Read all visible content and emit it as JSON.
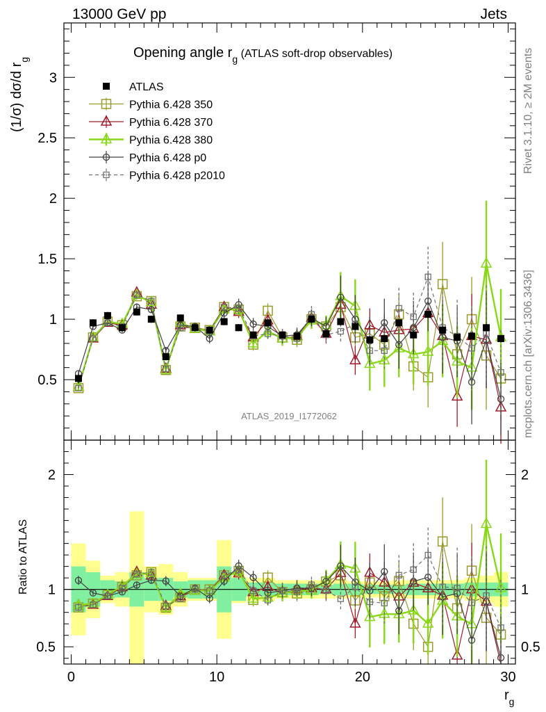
{
  "header": {
    "left": "13000 GeV pp",
    "right": "Jets"
  },
  "side": {
    "rivet": "Rivet 3.1.10, ≥ 2M events",
    "mcplots": "mcplots.cern.ch [arXiv:1306.3436]"
  },
  "analysis_tag": "ATLAS_2019_I1772062",
  "chart_data": [
    {
      "type": "scatter",
      "title": "Opening angle r_g (ATLAS soft-drop observables)",
      "xlabel": "r_g",
      "ylabel": "(1/σ) dσ/d r_g",
      "xlim": [
        -0.5,
        30.5
      ],
      "ylim": [
        0,
        3.45
      ],
      "yticks": [
        0.5,
        1,
        1.5,
        2,
        2.5,
        3
      ],
      "ytick_labels": [
        "0.5",
        "1",
        "1.5",
        "2",
        "2.5",
        "3"
      ],
      "x": [
        0.5,
        1.5,
        2.5,
        3.5,
        4.5,
        5.5,
        6.5,
        7.5,
        8.5,
        9.5,
        10.5,
        11.5,
        12.5,
        13.5,
        14.5,
        15.5,
        16.5,
        17.5,
        18.5,
        19.5,
        20.5,
        21.5,
        22.5,
        23.5,
        24.5,
        25.5,
        26.5,
        27.5,
        28.5,
        29.5
      ],
      "legend_position": "top-left",
      "series": [
        {
          "name": "ATLAS",
          "color": "#000000",
          "marker": "filled-square",
          "values": [
            0.51,
            0.97,
            1.03,
            0.93,
            1.06,
            1.0,
            0.69,
            1.01,
            0.93,
            0.91,
            0.98,
            0.93,
            0.87,
            0.97,
            0.87,
            0.86,
            1.0,
            0.88,
            0.98,
            0.94,
            0.83,
            0.84,
            0.97,
            0.87,
            1.04,
            0.91,
            0.85,
            0.86,
            0.93,
            0.84
          ],
          "errors": [
            0.04,
            0.03,
            0.03,
            0.03,
            0.03,
            0.03,
            0.03,
            0.03,
            0.03,
            0.03,
            0.03,
            0.03,
            0.03,
            0.03,
            0.03,
            0.03,
            0.03,
            0.03,
            0.03,
            0.03,
            0.03,
            0.03,
            0.03,
            0.03,
            0.03,
            0.03,
            0.03,
            0.03,
            0.03,
            0.03
          ]
        },
        {
          "name": "Pythia 6.428 350",
          "color": "#9a9a2a",
          "marker": "open-square",
          "dash": false,
          "values": [
            0.43,
            0.85,
            0.98,
            0.95,
            1.19,
            1.15,
            0.58,
            0.94,
            0.93,
            0.91,
            1.1,
            1.08,
            0.79,
            1.07,
            0.85,
            0.83,
            1.0,
            0.94,
            1.1,
            0.85,
            0.88,
            0.79,
            1.04,
            0.61,
            0.52,
            1.29,
            0.71,
            1.0,
            0.7,
            0.51
          ],
          "errors": [
            0.02,
            0.02,
            0.02,
            0.02,
            0.03,
            0.03,
            0.03,
            0.03,
            0.03,
            0.04,
            0.04,
            0.05,
            0.05,
            0.06,
            0.06,
            0.06,
            0.07,
            0.08,
            0.1,
            0.12,
            0.14,
            0.15,
            0.17,
            0.2,
            0.25,
            0.35,
            0.3,
            0.35,
            0.45,
            0.35
          ]
        },
        {
          "name": "Pythia 6.428 370",
          "color": "#a01a2a",
          "marker": "open-triangle",
          "dash": false,
          "values": [
            0.44,
            0.84,
            0.97,
            0.95,
            1.22,
            1.12,
            0.59,
            0.95,
            0.92,
            0.9,
            1.1,
            1.06,
            0.85,
            0.99,
            0.84,
            0.86,
            1.01,
            0.88,
            1.12,
            0.66,
            0.95,
            0.89,
            0.91,
            0.92,
            1.05,
            0.86,
            0.36,
            0.86,
            0.83,
            0.27
          ],
          "errors": [
            0.02,
            0.02,
            0.02,
            0.02,
            0.03,
            0.03,
            0.03,
            0.03,
            0.03,
            0.04,
            0.04,
            0.05,
            0.05,
            0.06,
            0.06,
            0.06,
            0.07,
            0.08,
            0.1,
            0.12,
            0.14,
            0.15,
            0.17,
            0.2,
            0.25,
            0.3,
            0.25,
            0.35,
            0.4,
            0.3
          ]
        },
        {
          "name": "Pythia 6.428 380",
          "color": "#88d818",
          "marker": "open-triangle",
          "dash": false,
          "values": [
            0.44,
            0.85,
            0.98,
            0.96,
            1.2,
            1.14,
            0.58,
            0.97,
            0.92,
            0.9,
            1.08,
            1.08,
            0.8,
            0.9,
            0.84,
            0.85,
            0.99,
            0.95,
            1.19,
            1.11,
            0.63,
            0.66,
            0.76,
            0.71,
            0.73,
            0.82,
            0.65,
            0.6,
            1.46,
            0.85
          ],
          "errors": [
            0.02,
            0.02,
            0.02,
            0.02,
            0.03,
            0.03,
            0.03,
            0.03,
            0.03,
            0.04,
            0.04,
            0.05,
            0.05,
            0.06,
            0.06,
            0.06,
            0.07,
            0.08,
            0.2,
            0.22,
            0.22,
            0.22,
            0.24,
            0.25,
            0.28,
            0.3,
            0.3,
            0.35,
            0.52,
            0.4
          ]
        },
        {
          "name": "Pythia 6.428 p0",
          "color": "#404040",
          "marker": "open-circle",
          "dash": false,
          "values": [
            0.55,
            0.94,
            0.97,
            0.91,
            1.1,
            1.08,
            0.74,
            0.95,
            0.94,
            0.84,
            1.05,
            1.12,
            0.96,
            0.94,
            0.86,
            0.87,
            1.01,
            0.94,
            1.18,
            1.0,
            0.82,
            0.97,
            0.79,
            0.93,
            1.15,
            0.85,
            0.82,
            0.48,
            0.83,
            0.34
          ],
          "errors": [
            0.02,
            0.02,
            0.02,
            0.02,
            0.03,
            0.03,
            0.03,
            0.03,
            0.03,
            0.04,
            0.04,
            0.05,
            0.05,
            0.06,
            0.06,
            0.06,
            0.07,
            0.08,
            0.18,
            0.2,
            0.2,
            0.2,
            0.2,
            0.22,
            0.25,
            0.3,
            0.3,
            0.35,
            0.4,
            0.3
          ]
        },
        {
          "name": "Pythia 6.428 p2010",
          "color": "#707070",
          "marker": "open-square-small",
          "dash": true,
          "values": [
            0.43,
            0.84,
            0.97,
            0.94,
            1.2,
            1.15,
            0.59,
            0.93,
            0.93,
            0.9,
            1.1,
            1.09,
            0.86,
            0.88,
            0.86,
            0.84,
            1.04,
            0.87,
            0.9,
            0.96,
            0.74,
            0.74,
            1.09,
            1.02,
            1.35,
            0.93,
            0.86,
            0.76,
            0.88,
            0.56
          ],
          "errors": [
            0.02,
            0.02,
            0.02,
            0.02,
            0.03,
            0.03,
            0.03,
            0.03,
            0.03,
            0.04,
            0.04,
            0.05,
            0.05,
            0.06,
            0.06,
            0.06,
            0.07,
            0.08,
            0.1,
            0.12,
            0.14,
            0.15,
            0.17,
            0.2,
            0.25,
            0.3,
            0.3,
            0.35,
            0.4,
            0.35
          ]
        }
      ]
    },
    {
      "type": "band",
      "ylabel": "Ratio to ATLAS",
      "xlabel": "r_g",
      "xlim": [
        -0.5,
        30.5
      ],
      "ylim": [
        0.35,
        2.3
      ],
      "yticks": [
        0.5,
        1,
        2
      ],
      "ytick_labels": [
        "0.5",
        "1",
        "2"
      ],
      "xticks": [
        0,
        10,
        20,
        30
      ],
      "xtick_labels": [
        "0",
        "10",
        "20",
        "30"
      ],
      "stat_band_halfwidth": [
        0.2,
        0.15,
        0.08,
        0.07,
        0.15,
        0.1,
        0.1,
        0.07,
        0.08,
        0.08,
        0.2,
        0.1,
        0.06,
        0.06,
        0.05,
        0.05,
        0.05,
        0.04,
        0.05,
        0.05,
        0.04,
        0.04,
        0.04,
        0.05,
        0.05,
        0.05,
        0.05,
        0.06,
        0.06,
        0.06
      ],
      "total_band_halfwidth": [
        0.4,
        0.25,
        0.12,
        0.15,
        0.68,
        0.2,
        0.22,
        0.15,
        0.1,
        0.1,
        0.43,
        0.12,
        0.1,
        0.1,
        0.08,
        0.08,
        0.08,
        0.08,
        0.08,
        0.07,
        0.07,
        0.07,
        0.08,
        0.08,
        0.08,
        0.08,
        0.08,
        0.1,
        0.12,
        0.15
      ],
      "stat_color": "#80f0a0",
      "total_color": "#ffff90"
    }
  ],
  "legend_items": [
    "ATLAS",
    "Pythia 6.428 350",
    "Pythia 6.428 370",
    "Pythia 6.428 380",
    "Pythia 6.428 p0",
    "Pythia 6.428 p2010"
  ]
}
